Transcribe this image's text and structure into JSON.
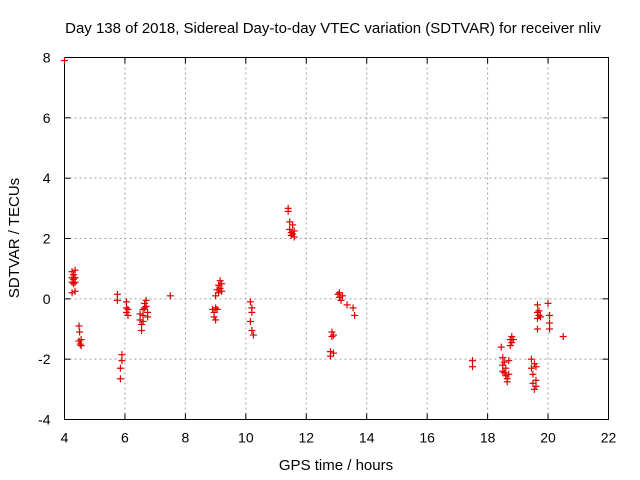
{
  "chart_data": {
    "type": "scatter",
    "title": "Day 138 of 2018, Sidereal Day-to-day VTEC variation (SDTVAR) for receiver nliv",
    "xlabel": "GPS time / hours",
    "ylabel": "SDTVAR / TECUs",
    "xlim": [
      4,
      22
    ],
    "ylim": [
      -4,
      8
    ],
    "xticks": [
      "4",
      "6",
      "8",
      "10",
      "12",
      "14",
      "16",
      "18",
      "20",
      "22"
    ],
    "yticks": [
      "-4",
      "-2",
      "0",
      "2",
      "4",
      "6",
      "8"
    ],
    "grid": true,
    "marker_color": "#dd0000",
    "marker": "plus",
    "series": [
      {
        "name": "nliv",
        "points": [
          [
            4.0,
            7.9
          ],
          [
            4.25,
            0.2
          ],
          [
            4.25,
            0.55
          ],
          [
            4.25,
            0.7
          ],
          [
            4.25,
            0.9
          ],
          [
            4.3,
            0.5
          ],
          [
            4.3,
            0.65
          ],
          [
            4.3,
            0.8
          ],
          [
            4.35,
            0.25
          ],
          [
            4.35,
            0.55
          ],
          [
            4.35,
            0.7
          ],
          [
            4.35,
            0.95
          ],
          [
            4.48,
            -0.9
          ],
          [
            4.48,
            -1.4
          ],
          [
            4.5,
            -1.1
          ],
          [
            4.52,
            -1.5
          ],
          [
            4.55,
            -1.35
          ],
          [
            4.55,
            -1.55
          ],
          [
            5.75,
            0.15
          ],
          [
            5.75,
            -0.05
          ],
          [
            5.85,
            -2.3
          ],
          [
            5.85,
            -2.65
          ],
          [
            5.9,
            -1.85
          ],
          [
            5.9,
            -2.05
          ],
          [
            6.05,
            -0.1
          ],
          [
            6.05,
            -0.3
          ],
          [
            6.05,
            -0.45
          ],
          [
            6.1,
            -0.55
          ],
          [
            6.1,
            -0.35
          ],
          [
            6.5,
            -0.5
          ],
          [
            6.5,
            -0.7
          ],
          [
            6.55,
            -0.85
          ],
          [
            6.55,
            -1.05
          ],
          [
            6.6,
            -0.35
          ],
          [
            6.6,
            -0.55
          ],
          [
            6.6,
            -0.75
          ],
          [
            6.65,
            -0.15
          ],
          [
            6.65,
            -0.3
          ],
          [
            6.7,
            -0.05
          ],
          [
            6.7,
            -0.25
          ],
          [
            6.75,
            -0.45
          ],
          [
            6.75,
            -0.6
          ],
          [
            7.5,
            0.1
          ],
          [
            8.9,
            -0.35
          ],
          [
            8.95,
            -0.45
          ],
          [
            8.95,
            -0.6
          ],
          [
            9.0,
            -0.7
          ],
          [
            9.0,
            -0.3
          ],
          [
            9.0,
            0.1
          ],
          [
            9.05,
            -0.35
          ],
          [
            9.05,
            0.3
          ],
          [
            9.1,
            0.45
          ],
          [
            9.1,
            0.2
          ],
          [
            9.15,
            0.6
          ],
          [
            9.15,
            0.35
          ],
          [
            9.2,
            0.5
          ],
          [
            9.2,
            0.25
          ],
          [
            10.15,
            -0.1
          ],
          [
            10.15,
            -0.75
          ],
          [
            10.2,
            -0.3
          ],
          [
            10.2,
            -0.45
          ],
          [
            10.2,
            -1.05
          ],
          [
            10.25,
            -1.2
          ],
          [
            11.4,
            3.0
          ],
          [
            11.4,
            2.9
          ],
          [
            11.45,
            2.55
          ],
          [
            11.45,
            2.3
          ],
          [
            11.5,
            2.2
          ],
          [
            11.5,
            2.1
          ],
          [
            11.55,
            2.45
          ],
          [
            11.55,
            2.15
          ],
          [
            11.6,
            2.05
          ],
          [
            11.6,
            2.25
          ],
          [
            12.8,
            -1.75
          ],
          [
            12.8,
            -1.9
          ],
          [
            12.85,
            -1.25
          ],
          [
            12.85,
            -1.1
          ],
          [
            12.9,
            -1.8
          ],
          [
            12.9,
            -1.2
          ],
          [
            13.05,
            0.15
          ],
          [
            13.1,
            0.05
          ],
          [
            13.1,
            0.2
          ],
          [
            13.15,
            -0.05
          ],
          [
            13.2,
            0.1
          ],
          [
            13.35,
            -0.2
          ],
          [
            13.55,
            -0.3
          ],
          [
            13.6,
            -0.55
          ],
          [
            17.5,
            -2.05
          ],
          [
            17.5,
            -2.25
          ],
          [
            18.45,
            -1.6
          ],
          [
            18.5,
            -1.95
          ],
          [
            18.5,
            -2.2
          ],
          [
            18.5,
            -2.4
          ],
          [
            18.55,
            -2.1
          ],
          [
            18.55,
            -2.45
          ],
          [
            18.6,
            -2.3
          ],
          [
            18.6,
            -2.55
          ],
          [
            18.65,
            -2.65
          ],
          [
            18.65,
            -2.75
          ],
          [
            18.7,
            -2.5
          ],
          [
            18.7,
            -2.05
          ],
          [
            18.75,
            -1.35
          ],
          [
            18.75,
            -1.55
          ],
          [
            18.8,
            -1.25
          ],
          [
            18.8,
            -1.45
          ],
          [
            18.85,
            -1.35
          ],
          [
            19.45,
            -2.0
          ],
          [
            19.45,
            -2.3
          ],
          [
            19.5,
            -2.5
          ],
          [
            19.5,
            -2.8
          ],
          [
            19.55,
            -3.0
          ],
          [
            19.55,
            -2.15
          ],
          [
            19.6,
            -2.7
          ],
          [
            19.6,
            -2.9
          ],
          [
            19.6,
            -2.25
          ],
          [
            19.65,
            -0.2
          ],
          [
            19.65,
            -0.45
          ],
          [
            19.65,
            -0.65
          ],
          [
            19.65,
            -1.0
          ],
          [
            19.7,
            -0.55
          ],
          [
            19.7,
            -0.4
          ],
          [
            19.75,
            -0.6
          ],
          [
            20.0,
            -0.15
          ],
          [
            20.05,
            -0.55
          ],
          [
            20.05,
            -0.8
          ],
          [
            20.05,
            -1.0
          ],
          [
            20.5,
            -1.25
          ]
        ]
      }
    ]
  }
}
